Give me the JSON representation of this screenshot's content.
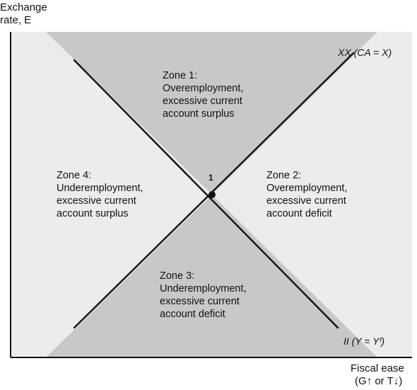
{
  "colors": {
    "plot_background": "#ececec",
    "dark_zone": "#c8c8c8",
    "line": "#111111",
    "axis": "#111111",
    "point": "#111111"
  },
  "axes": {
    "y_label_line1": "Exchange",
    "y_label_line2": "rate, E",
    "x_label_line1": "Fiscal ease",
    "x_label_line2": "(G↑ or T↓)"
  },
  "curves": {
    "xx_label": "XX (CA = X)",
    "ii_label": "II (Y = Yᶠ)"
  },
  "point": {
    "label": "1"
  },
  "zones": [
    {
      "title": "Zone 1:",
      "line1": "Overemployment,",
      "line2": "excessive current",
      "line3": "account surplus"
    },
    {
      "title": "Zone 2:",
      "line1": "Overemployment,",
      "line2": "excessive current",
      "line3": "account deficit"
    },
    {
      "title": "Zone 3:",
      "line1": "Underemployment,",
      "line2": "excessive current",
      "line3": "account deficit"
    },
    {
      "title": "Zone 4:",
      "line1": "Underemployment,",
      "line2": "excessive current",
      "line3": "account surplus"
    }
  ]
}
